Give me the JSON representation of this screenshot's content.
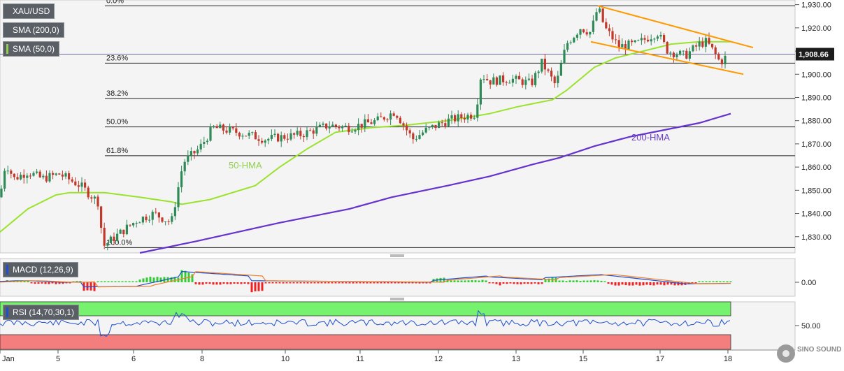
{
  "chart_data": {
    "type": "candlestick",
    "symbol": "XAU/USD",
    "indicators": [
      {
        "label": "SMA (200,0)",
        "color": "#5a5f66"
      },
      {
        "label": "SMA (50,0)",
        "color": "#92d050"
      }
    ],
    "last_price": "1,908.66",
    "price_axis": {
      "range": [
        1823,
        1932
      ],
      "ticks": [
        "1,830.00",
        "1,840.00",
        "1,850.00",
        "1,860.00",
        "1,870.00",
        "1,880.00",
        "1,890.00",
        "1,900.00",
        "1,910.00",
        "1,920.00",
        "1,930.00"
      ],
      "values": [
        1830,
        1840,
        1850,
        1860,
        1870,
        1880,
        1890,
        1900,
        1910,
        1920,
        1930
      ]
    },
    "x_axis": {
      "ticks": [
        "Jan",
        "5",
        "6",
        "8",
        "10",
        "11",
        "12",
        "13",
        "15",
        "17",
        "18"
      ]
    },
    "fibonacci": [
      {
        "label": "0.0%",
        "price": 1929.5
      },
      {
        "label": "23.6%",
        "price": 1904.8
      },
      {
        "label": "38.2%",
        "price": 1889.6
      },
      {
        "label": "50.0%",
        "price": 1877.3
      },
      {
        "label": "61.8%",
        "price": 1864.9
      },
      {
        "label": "100.0%",
        "price": 1825.3
      }
    ],
    "annotations": {
      "hma50": "50-HMA",
      "hma200": "200-HMA"
    },
    "macd": {
      "label": "MACD (12,26,9)",
      "tick": "0.00"
    },
    "rsi": {
      "label": "RSI (14,70,30,1)",
      "tick": "50.00"
    },
    "watermark": "SINO SOUND",
    "colors": {
      "up": "#2e8b57",
      "down": "#c0392b",
      "hma50": "#9be22d",
      "hma200": "#6633cc",
      "channel": "#ff9900",
      "fib": "#222222",
      "macd": "#1f4fd1",
      "signal": "#f07f2b",
      "hist_up": "#33cc33",
      "hist_down": "#ee2222",
      "rsi": "#1f4fd1",
      "rsi_over": "#77f26f",
      "rsi_under": "#f47d7d"
    }
  }
}
